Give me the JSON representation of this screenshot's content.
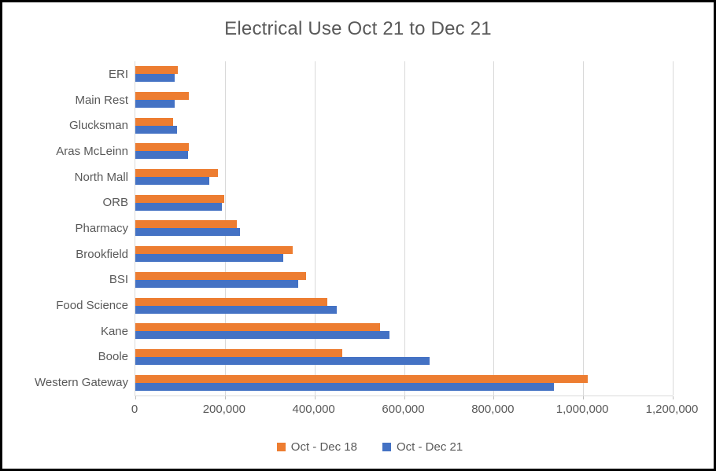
{
  "title": "Electrical Use Oct 21 to Dec 21",
  "chart_data": {
    "type": "bar",
    "orientation": "horizontal",
    "title": "Electrical Use Oct 21 to Dec 21",
    "categories": [
      "ERI",
      "Main Rest",
      "Glucksman",
      "Aras McLeinn",
      "North Mall",
      "ORB",
      "Pharmacy",
      "Brookfield",
      "BSI",
      "Food Science",
      "Kane",
      "Boole",
      "Western Gateway"
    ],
    "series": [
      {
        "name": "Oct - Dec 18",
        "color": "#ED7D31",
        "values": [
          95000,
          120000,
          84000,
          120000,
          184000,
          198000,
          227000,
          352000,
          382000,
          429000,
          546000,
          462000,
          1010000
        ]
      },
      {
        "name": "Oct - Dec 21",
        "color": "#4472C4",
        "values": [
          88000,
          88000,
          93000,
          118000,
          165000,
          193000,
          233000,
          330000,
          363000,
          450000,
          567000,
          657000,
          935000
        ]
      }
    ],
    "xlim": [
      0,
      1200000
    ],
    "xticks": [
      0,
      200000,
      400000,
      600000,
      800000,
      1000000,
      1200000
    ],
    "xtick_labels": [
      "0",
      "200,000",
      "400,000",
      "600,000",
      "800,000",
      "1,000,000",
      "1,200,000"
    ],
    "grid": "vertical",
    "legend_position": "bottom"
  },
  "legend": {
    "items": [
      {
        "label": "Oct - Dec 18",
        "color": "#ED7D31"
      },
      {
        "label": "Oct - Dec 21",
        "color": "#4472C4"
      }
    ]
  },
  "colors": {
    "series_orange": "#ED7D31",
    "series_blue": "#4472C4",
    "text": "#595959",
    "gridline": "#D9D9D9",
    "frame_border": "#000000",
    "background": "#FFFFFF"
  }
}
